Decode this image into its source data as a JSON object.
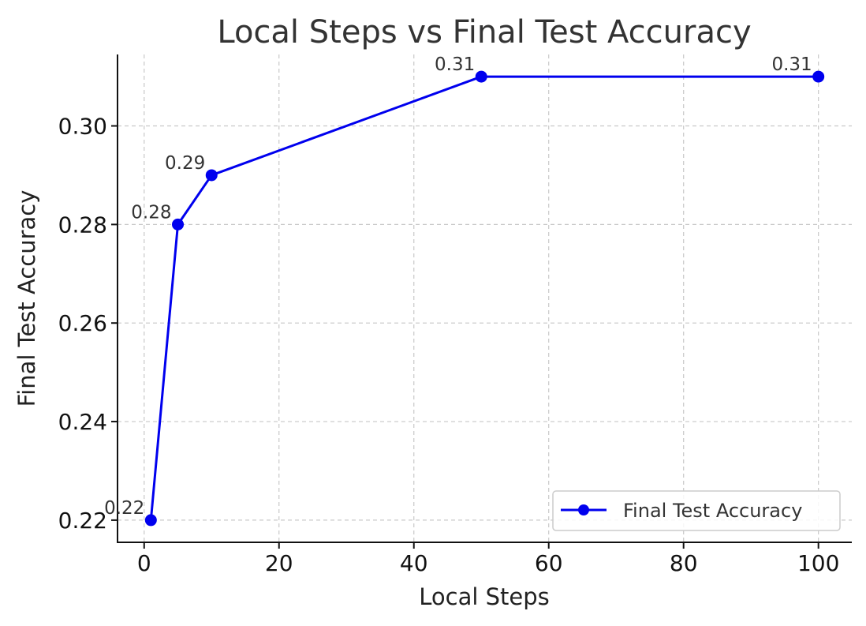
{
  "chart_data": {
    "type": "line",
    "title": "Local Steps vs Final Test Accuracy",
    "xlabel": "Local Steps",
    "ylabel": "Final Test Accuracy",
    "x": [
      1,
      5,
      10,
      50,
      100
    ],
    "series": [
      {
        "name": "Final Test Accuracy",
        "values": [
          0.22,
          0.28,
          0.29,
          0.31,
          0.31
        ],
        "data_labels": [
          "0.22",
          "0.28",
          "0.29",
          "0.31",
          "0.31"
        ],
        "color": "#0000ee",
        "marker": "circle"
      }
    ],
    "xlim": [
      -3.95,
      104.95
    ],
    "ylim": [
      0.2155,
      0.3145
    ],
    "xticks": [
      0,
      20,
      40,
      60,
      80,
      100
    ],
    "xtick_labels": [
      "0",
      "20",
      "40",
      "60",
      "80",
      "100"
    ],
    "yticks": [
      0.22,
      0.24,
      0.26,
      0.28,
      0.3
    ],
    "ytick_labels": [
      "0.22",
      "0.24",
      "0.26",
      "0.28",
      "0.30"
    ],
    "grid": true,
    "legend_position": "bottom-right"
  }
}
